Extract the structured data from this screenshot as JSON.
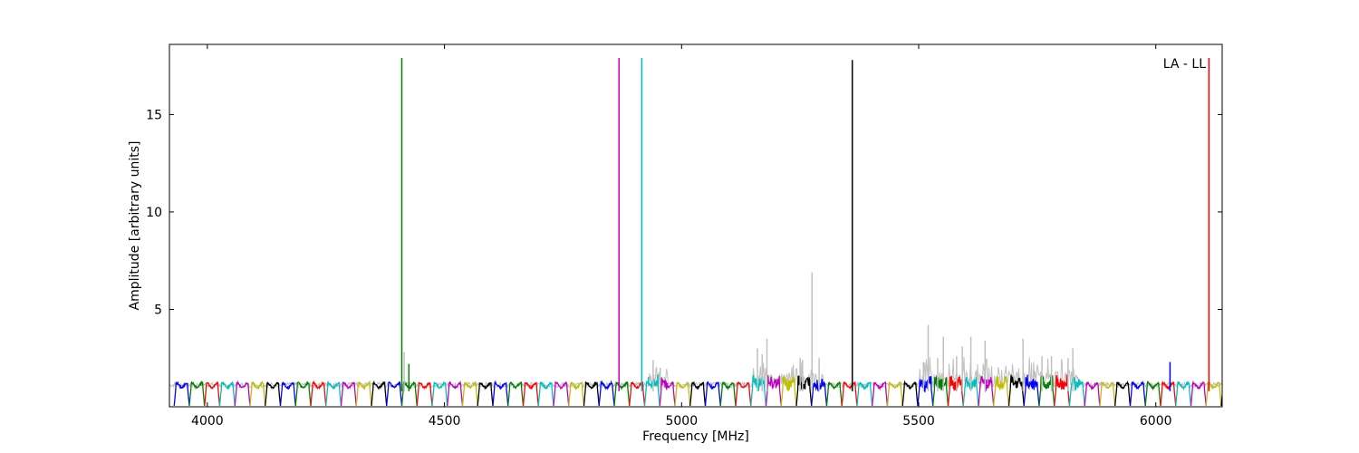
{
  "chart_data": {
    "type": "line",
    "title": "",
    "xlabel": "Frequency [MHz]",
    "ylabel": "Amplitude [arbitrary units]",
    "annotation": "LA - LL",
    "xlim": [
      3920,
      6140
    ],
    "ylim": [
      0,
      18.6
    ],
    "xticks": [
      4000,
      4500,
      5000,
      5500,
      6000
    ],
    "yticks": [
      5,
      10,
      15
    ],
    "grid": false,
    "legend": "none",
    "background_series_color": "#c0c0c0",
    "channel_colors": [
      "#0000ff",
      "#008000",
      "#ff0000",
      "#00bfbf",
      "#bf00bf",
      "#bfbf00",
      "#000000"
    ],
    "channel_width_mhz": 32,
    "channel_shape": "bandpass_dip",
    "channel_base_amplitude": 1.1,
    "spikes": [
      {
        "x": 4410,
        "y": 17.9,
        "color": "#008000"
      },
      {
        "x": 4868,
        "y": 17.9,
        "color": "#bf00bf"
      },
      {
        "x": 4916,
        "y": 17.9,
        "color": "#00bfbf"
      },
      {
        "x": 5360,
        "y": 17.8,
        "color": "#000000"
      },
      {
        "x": 6112,
        "y": 17.9,
        "color": "#ff0000"
      },
      {
        "x": 6030,
        "y": 2.3,
        "color": "#0000ff"
      },
      {
        "x": 4425,
        "y": 2.2,
        "color": "#008000"
      },
      {
        "x": 5275,
        "y": 6.9,
        "color": "#c0c0c0"
      },
      {
        "x": 5250,
        "y": 2.5,
        "color": "#c0c0c0"
      },
      {
        "x": 5255,
        "y": 2.4,
        "color": "#c0c0c0"
      },
      {
        "x": 5180,
        "y": 3.5,
        "color": "#c0c0c0"
      },
      {
        "x": 5160,
        "y": 3.0,
        "color": "#c0c0c0"
      },
      {
        "x": 5170,
        "y": 2.7,
        "color": "#c0c0c0"
      },
      {
        "x": 5290,
        "y": 2.5,
        "color": "#c0c0c0"
      },
      {
        "x": 5510,
        "y": 2.3,
        "color": "#c0c0c0"
      },
      {
        "x": 5520,
        "y": 4.2,
        "color": "#c0c0c0"
      },
      {
        "x": 5540,
        "y": 2.5,
        "color": "#c0c0c0"
      },
      {
        "x": 5552,
        "y": 3.6,
        "color": "#c0c0c0"
      },
      {
        "x": 5580,
        "y": 2.6,
        "color": "#c0c0c0"
      },
      {
        "x": 5592,
        "y": 3.1,
        "color": "#c0c0c0"
      },
      {
        "x": 5610,
        "y": 3.6,
        "color": "#c0c0c0"
      },
      {
        "x": 5640,
        "y": 3.4,
        "color": "#c0c0c0"
      },
      {
        "x": 5720,
        "y": 3.5,
        "color": "#c0c0c0"
      },
      {
        "x": 5760,
        "y": 2.6,
        "color": "#c0c0c0"
      },
      {
        "x": 5780,
        "y": 2.6,
        "color": "#c0c0c0"
      },
      {
        "x": 5825,
        "y": 3.0,
        "color": "#c0c0c0"
      },
      {
        "x": 5815,
        "y": 2.5,
        "color": "#c0c0c0"
      },
      {
        "x": 4940,
        "y": 2.4,
        "color": "#c0c0c0"
      },
      {
        "x": 4955,
        "y": 2.0,
        "color": "#c0c0c0"
      },
      {
        "x": 4415,
        "y": 2.8,
        "color": "#c0c0c0"
      }
    ],
    "rfi_regions": [
      {
        "x": [
          5150,
          5300
        ],
        "level": 2.0
      },
      {
        "x": [
          5500,
          5840
        ],
        "level": 2.2
      },
      {
        "x": [
          4930,
          4970
        ],
        "level": 1.8
      }
    ]
  }
}
